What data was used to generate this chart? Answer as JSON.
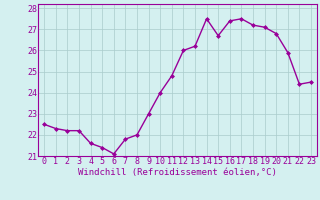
{
  "x": [
    0,
    1,
    2,
    3,
    4,
    5,
    6,
    7,
    8,
    9,
    10,
    11,
    12,
    13,
    14,
    15,
    16,
    17,
    18,
    19,
    20,
    21,
    22,
    23
  ],
  "y": [
    22.5,
    22.3,
    22.2,
    22.2,
    21.6,
    21.4,
    21.1,
    21.8,
    22.0,
    23.0,
    24.0,
    24.8,
    26.0,
    26.2,
    27.5,
    26.7,
    27.4,
    27.5,
    27.2,
    27.1,
    26.8,
    25.9,
    24.4,
    24.5
  ],
  "line_color": "#990099",
  "marker": "D",
  "marker_size": 2.0,
  "bg_color": "#d4f0f0",
  "grid_color": "#aacccc",
  "xlabel": "Windchill (Refroidissement éolien,°C)",
  "xlim": [
    -0.5,
    23.5
  ],
  "ylim": [
    21.0,
    28.2
  ],
  "yticks": [
    21,
    22,
    23,
    24,
    25,
    26,
    27,
    28
  ],
  "xticks": [
    0,
    1,
    2,
    3,
    4,
    5,
    6,
    7,
    8,
    9,
    10,
    11,
    12,
    13,
    14,
    15,
    16,
    17,
    18,
    19,
    20,
    21,
    22,
    23
  ],
  "xlabel_fontsize": 6.5,
  "tick_fontsize": 6.0,
  "line_width": 1.0
}
